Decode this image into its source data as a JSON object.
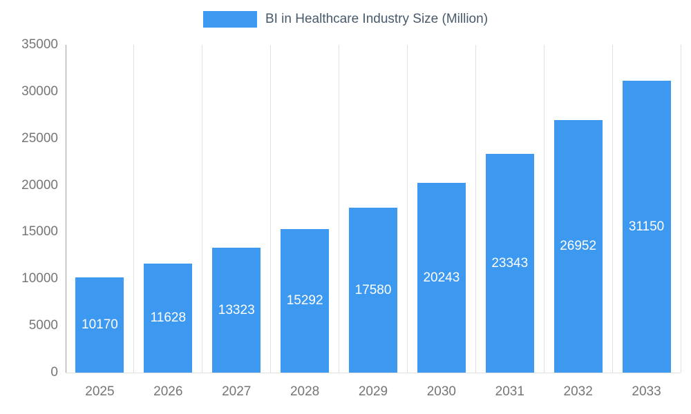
{
  "chart_data": {
    "type": "bar",
    "title": "BI in Healthcare Industry Size (Million)",
    "categories": [
      "2025",
      "2026",
      "2027",
      "2028",
      "2029",
      "2030",
      "2031",
      "2032",
      "2033"
    ],
    "values": [
      10170,
      11628,
      13323,
      15292,
      17580,
      20243,
      23343,
      26952,
      31150
    ],
    "xlabel": "",
    "ylabel": "",
    "ylim": [
      0,
      35000
    ],
    "yticks": [
      0,
      5000,
      10000,
      15000,
      20000,
      25000,
      30000,
      35000
    ],
    "grid": "vertical",
    "legend_position": "top-center",
    "value_labels": "centered-inside-bars",
    "colors": {
      "bar": "#3d99f0",
      "title": "#47596b",
      "axis_labels": "#757575",
      "gridline": "#e0e0e0",
      "axis_line": "#9e9e9e",
      "value_label": "#ffffff",
      "background": "#ffffff"
    }
  }
}
